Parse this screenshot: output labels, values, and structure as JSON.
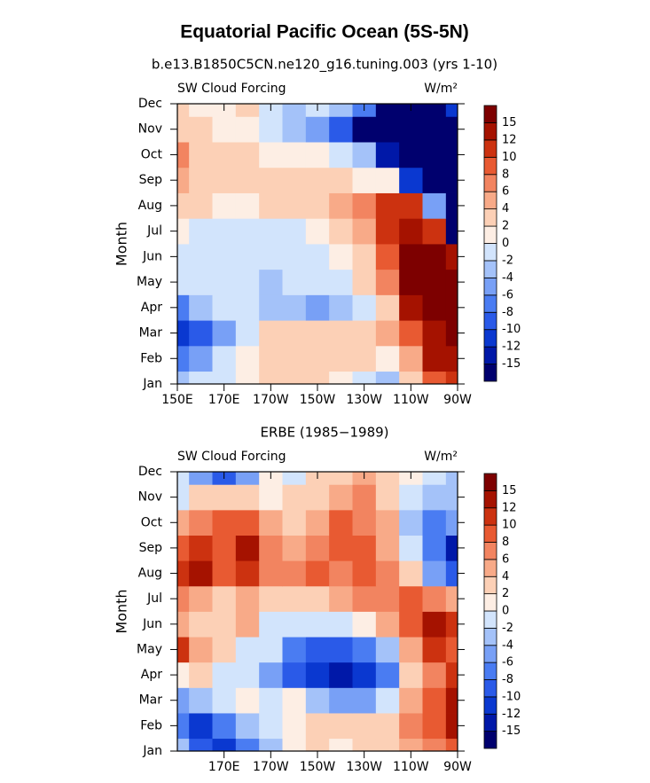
{
  "title": "Equatorial Pacific Ocean (5S-5N)",
  "chart_data": [
    {
      "type": "contour",
      "subtitle": "b.e13.B1850C5CN.ne120_g16.tuning.003 (yrs 1-10)",
      "left_label": "SW Cloud Forcing",
      "right_label": "W/m²",
      "y_label": "Month",
      "categories": [
        "Jan",
        "Feb",
        "Mar",
        "Apr",
        "May",
        "Jun",
        "Jul",
        "Aug",
        "Sep",
        "Oct",
        "Nov",
        "Dec"
      ],
      "x": [
        150,
        160,
        170,
        180,
        190,
        200,
        210,
        220,
        230,
        240,
        250,
        260,
        270
      ],
      "xlim": [
        150,
        270
      ],
      "xticks": [
        {
          "value": 150,
          "label": "150E"
        },
        {
          "value": 170,
          "label": "170E"
        },
        {
          "value": 190,
          "label": "170W"
        },
        {
          "value": 210,
          "label": "150W"
        },
        {
          "value": 230,
          "label": "130W"
        },
        {
          "value": 250,
          "label": "110W"
        },
        {
          "value": 270,
          "label": "90W"
        }
      ],
      "z": [
        [
          -3,
          -2,
          -1,
          1,
          2,
          2,
          2,
          1,
          -2,
          -3,
          2,
          8,
          10
        ],
        [
          -8,
          -5,
          -2,
          1,
          3,
          3,
          3,
          2,
          2,
          1,
          4,
          12,
          14
        ],
        [
          -12,
          -10,
          -5,
          -1,
          2,
          2,
          3,
          3,
          2,
          4,
          8,
          14,
          16
        ],
        [
          -8,
          -4,
          -2,
          -2,
          -3,
          -3,
          -5,
          -4,
          -1,
          2,
          12,
          16,
          16
        ],
        [
          -1,
          -2,
          -1,
          -2,
          -3,
          -1,
          -2,
          -1,
          2,
          6,
          16,
          16,
          16
        ],
        [
          -1,
          -2,
          -2,
          -1,
          -2,
          -1,
          -1,
          0,
          3,
          8,
          16,
          16,
          14
        ],
        [
          1,
          -1,
          -2,
          -2,
          -2,
          -1,
          1,
          3,
          5,
          10,
          14,
          10,
          -16
        ],
        [
          3,
          2,
          1,
          1,
          2,
          2,
          3,
          4,
          6,
          10,
          10,
          -6,
          -16
        ],
        [
          4,
          3,
          3,
          3,
          3,
          3,
          3,
          2,
          1,
          0,
          -12,
          -16,
          -16
        ],
        [
          6,
          3,
          2,
          2,
          1,
          1,
          0,
          -2,
          -4,
          -14,
          -16,
          -16,
          -16
        ],
        [
          3,
          2,
          1,
          1,
          -2,
          -4,
          -6,
          -10,
          -16,
          -16,
          -16,
          -16,
          -16
        ],
        [
          2,
          1,
          1,
          2,
          -1,
          -3,
          -2,
          -4,
          -8,
          -16,
          -16,
          -16,
          -12
        ]
      ],
      "levels": [
        -15,
        -12,
        -10,
        -8,
        -6,
        -4,
        -2,
        0,
        2,
        4,
        6,
        8,
        10,
        12,
        15
      ],
      "colors": [
        "#00006e",
        "#0018a8",
        "#0a38d0",
        "#2a5ae8",
        "#4a7cf2",
        "#78a0f6",
        "#a4c2f9",
        "#d2e4fc",
        "#fdeee4",
        "#fcd0b6",
        "#f8aa88",
        "#f28460",
        "#e85a32",
        "#cc3210",
        "#a51200",
        "#7d0000"
      ]
    },
    {
      "type": "contour",
      "subtitle": "ERBE (1985−1989)",
      "left_label": "SW Cloud Forcing",
      "right_label": "W/m²",
      "y_label": "Month",
      "categories": [
        "Jan",
        "Feb",
        "Mar",
        "Apr",
        "May",
        "Jun",
        "Jul",
        "Aug",
        "Sep",
        "Oct",
        "Nov",
        "Dec"
      ],
      "x": [
        150,
        160,
        170,
        180,
        190,
        200,
        210,
        220,
        230,
        240,
        250,
        260,
        270
      ],
      "xlim": [
        150,
        270
      ],
      "xticks": [
        {
          "value": 170,
          "label": "170E"
        },
        {
          "value": 190,
          "label": "170W"
        },
        {
          "value": 210,
          "label": "150W"
        },
        {
          "value": 230,
          "label": "130W"
        },
        {
          "value": 250,
          "label": "110W"
        },
        {
          "value": 270,
          "label": "90W"
        }
      ],
      "z": [
        [
          -4,
          -10,
          -12,
          -8,
          -3,
          1,
          3,
          1,
          2,
          3,
          5,
          6,
          8
        ],
        [
          -8,
          -12,
          -8,
          -4,
          -2,
          1,
          2,
          2,
          2,
          3,
          6,
          8,
          12
        ],
        [
          -6,
          -4,
          -2,
          0,
          -2,
          0,
          -4,
          -6,
          -6,
          -2,
          4,
          8,
          14
        ],
        [
          1,
          2,
          -2,
          -2,
          -6,
          -10,
          -12,
          -14,
          -12,
          -8,
          2,
          6,
          10
        ],
        [
          10,
          4,
          2,
          -2,
          -2,
          -8,
          -10,
          -10,
          -8,
          -4,
          4,
          10,
          8
        ],
        [
          4,
          2,
          2,
          4,
          -1,
          -2,
          -2,
          -2,
          0,
          4,
          8,
          12,
          10
        ],
        [
          6,
          4,
          2,
          4,
          3,
          2,
          3,
          4,
          6,
          6,
          8,
          6,
          4
        ],
        [
          10,
          12,
          8,
          10,
          6,
          6,
          8,
          6,
          8,
          6,
          2,
          -6,
          -10
        ],
        [
          8,
          10,
          8,
          12,
          6,
          4,
          6,
          8,
          8,
          4,
          -2,
          -8,
          -14
        ],
        [
          4,
          6,
          8,
          8,
          4,
          2,
          4,
          8,
          6,
          4,
          -4,
          -8,
          -6
        ],
        [
          -1,
          2,
          2,
          2,
          1,
          2,
          2,
          4,
          6,
          3,
          -2,
          -4,
          -4
        ],
        [
          -2,
          -6,
          -10,
          -6,
          0,
          -2,
          2,
          2,
          4,
          3,
          0,
          -2,
          -4
        ]
      ],
      "levels": [
        -15,
        -12,
        -10,
        -8,
        -6,
        -4,
        -2,
        0,
        2,
        4,
        6,
        8,
        10,
        12,
        15
      ],
      "colors": [
        "#00006e",
        "#0018a8",
        "#0a38d0",
        "#2a5ae8",
        "#4a7cf2",
        "#78a0f6",
        "#a4c2f9",
        "#d2e4fc",
        "#fdeee4",
        "#fcd0b6",
        "#f8aa88",
        "#f28460",
        "#e85a32",
        "#cc3210",
        "#a51200",
        "#7d0000"
      ]
    }
  ]
}
